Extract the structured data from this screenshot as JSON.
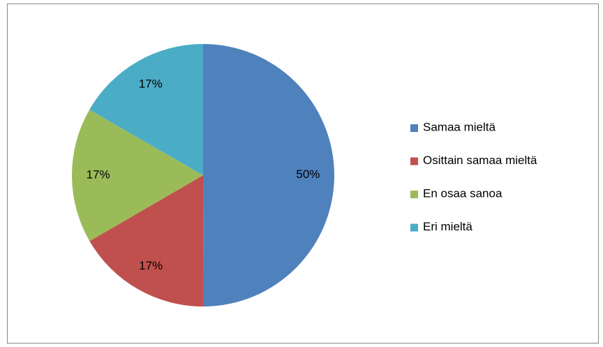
{
  "chart_data": {
    "type": "pie",
    "categories": [
      "Samaa mieltä",
      "Osittain samaa mieltä",
      "En osaa sanoa",
      "Eri mieltä"
    ],
    "values": [
      50,
      16.7,
      16.7,
      16.7
    ],
    "value_labels": [
      "50%",
      "17%",
      "17%",
      "17%"
    ],
    "colors": [
      "#4f81bd",
      "#c0504d",
      "#9bbb59",
      "#4bacc6"
    ],
    "legend": "right"
  }
}
